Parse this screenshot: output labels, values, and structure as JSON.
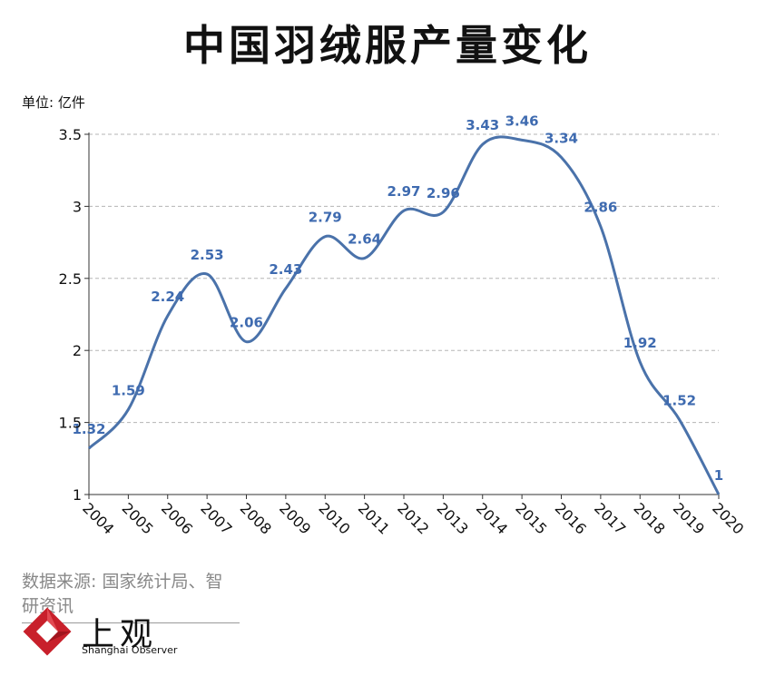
{
  "title": "中国羽绒服产量变化",
  "unit_label": "单位: 亿件",
  "source": "数据来源: 国家统计局、智研资讯",
  "brand": {
    "name_cn": "上观",
    "name_en": "Shanghai Observer",
    "color": "#c8202b"
  },
  "colors": {
    "line": "#4a72aa",
    "label": "#3f6bb0",
    "grid": "#b5b5b5",
    "axis": "#333333"
  },
  "chart_data": {
    "type": "line",
    "title": "中国羽绒服产量变化",
    "ylabel": "单位: 亿件",
    "categories": [
      "2004",
      "2005",
      "2006",
      "2007",
      "2008",
      "2009",
      "2010",
      "2011",
      "2012",
      "2013",
      "2014",
      "2015",
      "2016",
      "2017",
      "2018",
      "2019",
      "2020"
    ],
    "values": [
      1.32,
      1.59,
      2.24,
      2.53,
      2.06,
      2.43,
      2.79,
      2.64,
      2.97,
      2.96,
      3.43,
      3.46,
      3.34,
      2.86,
      1.92,
      1.52,
      1
    ],
    "value_labels": [
      "1.32",
      "1.59",
      "2.24",
      "2.53",
      "2.06",
      "2.43",
      "2.79",
      "2.64",
      "2.97",
      "2.96",
      "3.43",
      "3.46",
      "3.34",
      "2.86",
      "1.92",
      "1.52",
      "1"
    ],
    "yticks": [
      "1",
      "1.5",
      "2",
      "2.5",
      "3",
      "3.5"
    ],
    "ylim": [
      1,
      3.5
    ],
    "grid": true,
    "legend": "none"
  }
}
